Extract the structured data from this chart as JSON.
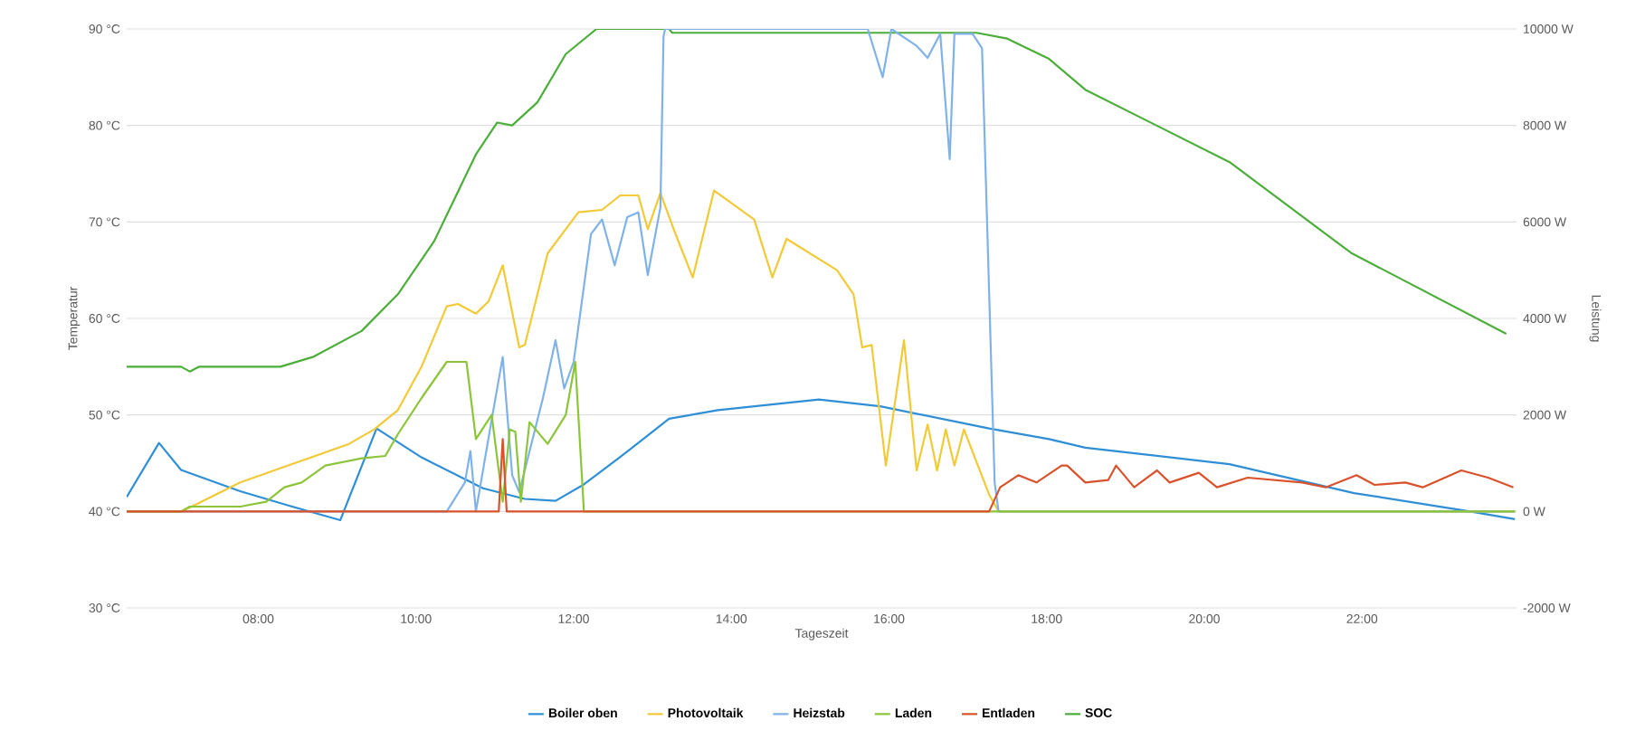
{
  "chart_data": {
    "type": "line",
    "xlabel": "Tageszeit",
    "ylabel": "Temperatur",
    "y2label": "Leistung",
    "grid": "y",
    "legend": "bottom",
    "xlim": [
      6.33,
      23.96
    ],
    "xticks": [
      {
        "value": 8,
        "label": "08:00"
      },
      {
        "value": 10,
        "label": "10:00"
      },
      {
        "value": 12,
        "label": "12:00"
      },
      {
        "value": 14,
        "label": "14:00"
      },
      {
        "value": 16,
        "label": "16:00"
      },
      {
        "value": 18,
        "label": "18:00"
      },
      {
        "value": 20,
        "label": "20:00"
      },
      {
        "value": 22,
        "label": "22:00"
      }
    ],
    "ylim": [
      30,
      90
    ],
    "yticks": [
      {
        "value": 30,
        "label": "30 °C"
      },
      {
        "value": 40,
        "label": "40 °C"
      },
      {
        "value": 50,
        "label": "50 °C"
      },
      {
        "value": 60,
        "label": "60 °C"
      },
      {
        "value": 70,
        "label": "70 °C"
      },
      {
        "value": 80,
        "label": "80 °C"
      },
      {
        "value": 90,
        "label": "90 °C"
      }
    ],
    "y2lim": [
      -2000,
      10000
    ],
    "y2ticks": [
      {
        "value": -2000,
        "label": "-2000 W"
      },
      {
        "value": 0,
        "label": "0 W"
      },
      {
        "value": 2000,
        "label": "2000 W"
      },
      {
        "value": 4000,
        "label": "4000 W"
      },
      {
        "value": 6000,
        "label": "6000 W"
      },
      {
        "value": 8000,
        "label": "8000 W"
      },
      {
        "value": 10000,
        "label": "10000 W"
      }
    ],
    "series": [
      {
        "name": "Boiler oben",
        "color": "#2e8fd6",
        "x": [
          6.33,
          6.74,
          7.02,
          7.77,
          8.39,
          9.04,
          9.5,
          10.07,
          10.85,
          11.38,
          11.77,
          12.13,
          12.68,
          13.21,
          13.83,
          15.11,
          15.89,
          17.27,
          18.03,
          18.49,
          20.32,
          21.9,
          23.37,
          23.94
        ],
        "values": [
          41.5,
          47.1,
          44.3,
          42.1,
          40.6,
          39.1,
          48.6,
          45.6,
          42.4,
          41.3,
          41.1,
          42.8,
          46.2,
          49.6,
          50.5,
          51.6,
          50.9,
          48.6,
          47.5,
          46.6,
          44.9,
          41.9,
          40,
          39.2
        ]
      },
      {
        "name": "Photovoltaik",
        "color": "#f2c936",
        "axis": "y2",
        "x": [
          6.33,
          7.02,
          7.09,
          7.77,
          8.55,
          9.15,
          9.47,
          9.77,
          10.07,
          10.39,
          10.53,
          10.76,
          10.92,
          11.1,
          11.31,
          11.38,
          11.67,
          12.06,
          12.36,
          12.59,
          12.82,
          12.94,
          13.1,
          13.28,
          13.51,
          13.78,
          14.29,
          14.52,
          14.7,
          15.34,
          15.55,
          15.66,
          15.78,
          15.96,
          16.19,
          16.35,
          16.49,
          16.61,
          16.72,
          16.83,
          16.95,
          17.27,
          17.39,
          23.94
        ],
        "values": [
          0,
          0,
          50,
          600,
          1050,
          1400,
          1700,
          2100,
          3000,
          4250,
          4300,
          4100,
          4350,
          5100,
          3400,
          3450,
          5350,
          6200,
          6250,
          6550,
          6550,
          5850,
          6600,
          5800,
          4850,
          6650,
          6050,
          4850,
          5650,
          5000,
          4500,
          3400,
          3450,
          950,
          3550,
          850,
          1800,
          850,
          1700,
          950,
          1700,
          350,
          0,
          0
        ]
      },
      {
        "name": "Heizstab",
        "color": "#7fb2e8",
        "axis": "y2",
        "x": [
          6.33,
          10.39,
          10.62,
          10.69,
          10.76,
          10.96,
          11.1,
          11.22,
          11.31,
          11.61,
          11.77,
          11.88,
          12.0,
          12.22,
          12.36,
          12.52,
          12.68,
          12.82,
          12.94,
          13.1,
          13.14,
          13.16,
          15.73,
          15.92,
          16.03,
          16.35,
          16.49,
          16.65,
          16.77,
          16.83,
          17.06,
          17.18,
          17.34,
          17.39,
          23.94
        ],
        "values": [
          0,
          0,
          600,
          1250,
          0,
          1900,
          3200,
          750,
          400,
          2350,
          3550,
          2550,
          3100,
          5750,
          6050,
          5100,
          6100,
          6200,
          4900,
          6300,
          9850,
          10000,
          10000,
          9000,
          10000,
          9650,
          9400,
          9900,
          7300,
          9900,
          9900,
          9600,
          600,
          0,
          0
        ]
      },
      {
        "name": "Laden",
        "color": "#8cc43a",
        "axis": "y2",
        "x": [
          6.33,
          7.02,
          7.13,
          7.77,
          8.1,
          8.33,
          8.55,
          8.85,
          9.31,
          9.61,
          9.77,
          10.07,
          10.39,
          10.64,
          10.76,
          10.96,
          11.1,
          11.19,
          11.26,
          11.33,
          11.44,
          11.67,
          11.9,
          12.02,
          12.13,
          23.94
        ],
        "values": [
          0,
          0,
          100,
          100,
          200,
          500,
          600,
          950,
          1100,
          1150,
          1600,
          2350,
          3100,
          3100,
          1500,
          2000,
          200,
          1700,
          1650,
          200,
          1850,
          1400,
          2000,
          3100,
          0,
          0
        ]
      },
      {
        "name": "Entladen",
        "color": "#d9522b",
        "axis": "y2",
        "x": [
          6.33,
          11.05,
          11.1,
          11.15,
          17.27,
          17.41,
          17.64,
          17.87,
          18.19,
          18.26,
          18.49,
          18.78,
          18.88,
          19.11,
          19.4,
          19.56,
          19.93,
          20.16,
          20.55,
          21.24,
          21.54,
          21.93,
          22.16,
          22.55,
          22.77,
          23.26,
          23.6,
          23.92
        ],
        "values": [
          0,
          0,
          1500,
          0,
          0,
          500,
          750,
          600,
          950,
          950,
          600,
          650,
          950,
          500,
          850,
          600,
          800,
          500,
          700,
          600,
          500,
          750,
          550,
          600,
          500,
          850,
          700,
          500
        ]
      },
      {
        "name": "SOC",
        "color": "#4cae3a",
        "x": [
          6.33,
          7.02,
          7.13,
          7.25,
          8.28,
          8.69,
          9.31,
          9.77,
          10.23,
          10.76,
          11.03,
          11.22,
          11.54,
          11.9,
          12.29,
          13.21,
          13.25,
          17.11,
          17.5,
          18.03,
          18.49,
          20.32,
          21.86,
          23.83
        ],
        "values": [
          55,
          55,
          54.5,
          55,
          55,
          56,
          58.7,
          62.5,
          68,
          77,
          80.3,
          80,
          82.4,
          87.4,
          90,
          90,
          89.6,
          89.6,
          89,
          86.9,
          83.7,
          76.2,
          66.8,
          58.4
        ]
      }
    ]
  }
}
